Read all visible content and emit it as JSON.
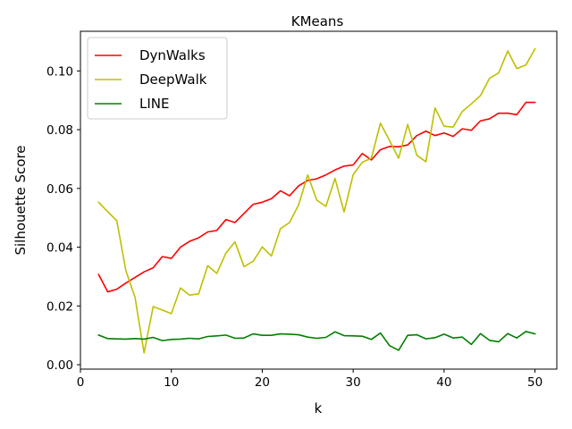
{
  "chart_data": {
    "type": "line",
    "title": "KMeans",
    "xlabel": "k",
    "ylabel": "Silhouette Score",
    "xlim": [
      0,
      52.4
    ],
    "ylim": [
      -0.0015,
      0.1135
    ],
    "xticks": [
      0,
      10,
      20,
      30,
      40,
      50
    ],
    "xtick_labels": [
      "0",
      "10",
      "20",
      "30",
      "40",
      "50"
    ],
    "yticks": [
      0.0,
      0.02,
      0.04,
      0.06,
      0.08,
      0.1
    ],
    "ytick_labels": [
      "0.00",
      "0.02",
      "0.04",
      "0.06",
      "0.08",
      "0.10"
    ],
    "grid": false,
    "legend_position": "upper-left",
    "x": [
      2,
      3,
      4,
      5,
      6,
      7,
      8,
      9,
      10,
      11,
      12,
      13,
      14,
      15,
      16,
      17,
      18,
      19,
      20,
      21,
      22,
      23,
      24,
      25,
      26,
      27,
      28,
      29,
      30,
      31,
      32,
      33,
      34,
      35,
      36,
      37,
      38,
      39,
      40,
      41,
      42,
      43,
      44,
      45,
      46,
      47,
      48,
      49,
      50
    ],
    "series": [
      {
        "name": "DynWalks",
        "color": "#ff0000",
        "values": [
          0.0307,
          0.0248,
          0.0257,
          0.0278,
          0.0297,
          0.0316,
          0.033,
          0.0368,
          0.0362,
          0.04,
          0.042,
          0.0432,
          0.0452,
          0.0457,
          0.0494,
          0.0484,
          0.0515,
          0.0546,
          0.0553,
          0.0565,
          0.0592,
          0.0575,
          0.0609,
          0.0627,
          0.0633,
          0.0646,
          0.0663,
          0.0676,
          0.068,
          0.0719,
          0.0697,
          0.0732,
          0.0743,
          0.0742,
          0.0748,
          0.078,
          0.0795,
          0.078,
          0.0789,
          0.0777,
          0.0803,
          0.0798,
          0.083,
          0.0837,
          0.0856,
          0.0856,
          0.0851,
          0.0893,
          0.0893
        ]
      },
      {
        "name": "DeepWalk",
        "color": "#bfbf00",
        "values": [
          0.0553,
          0.0521,
          0.049,
          0.032,
          0.023,
          0.004,
          0.0198,
          0.0186,
          0.0174,
          0.0261,
          0.0237,
          0.0241,
          0.0337,
          0.0311,
          0.038,
          0.0418,
          0.0334,
          0.0352,
          0.0401,
          0.037,
          0.0463,
          0.0484,
          0.0544,
          0.0646,
          0.056,
          0.0539,
          0.0634,
          0.052,
          0.0647,
          0.0689,
          0.0703,
          0.0822,
          0.0763,
          0.0703,
          0.0818,
          0.0713,
          0.0691,
          0.0874,
          0.0812,
          0.0809,
          0.0862,
          0.0888,
          0.0916,
          0.0975,
          0.0993,
          0.1068,
          0.1008,
          0.102,
          0.1075
        ]
      },
      {
        "name": "LINE",
        "color": "#008000",
        "values": [
          0.0101,
          0.0089,
          0.0088,
          0.0087,
          0.0089,
          0.0087,
          0.0093,
          0.0082,
          0.0086,
          0.0087,
          0.009,
          0.0088,
          0.0096,
          0.0098,
          0.0101,
          0.009,
          0.0091,
          0.0105,
          0.01,
          0.01,
          0.0105,
          0.0104,
          0.0102,
          0.0094,
          0.009,
          0.0093,
          0.0112,
          0.0099,
          0.0098,
          0.0097,
          0.0086,
          0.0108,
          0.0065,
          0.0049,
          0.01,
          0.0102,
          0.0088,
          0.0092,
          0.0104,
          0.0091,
          0.0094,
          0.0069,
          0.0106,
          0.0083,
          0.0078,
          0.0106,
          0.0091,
          0.0113,
          0.0105
        ]
      }
    ]
  }
}
